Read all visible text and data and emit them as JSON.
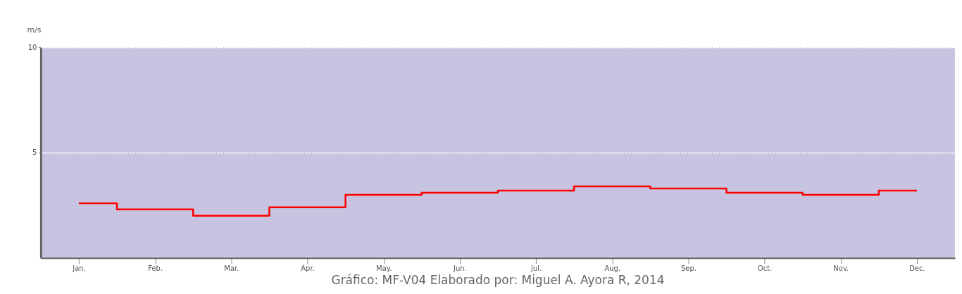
{
  "chart_data": {
    "type": "step",
    "ylabel": "m/s",
    "categories": [
      "Jan.",
      "Feb.",
      "Mar.",
      "Apr.",
      "May.",
      "Jun.",
      "Jul.",
      "Aug.",
      "Sep.",
      "Oct.",
      "Nov.",
      "Dec."
    ],
    "series": [
      {
        "color": "#ff0000",
        "values": [
          2.6,
          2.3,
          2.0,
          2.4,
          3.0,
          3.1,
          3.2,
          3.4,
          3.3,
          3.1,
          3.0,
          3.2
        ]
      }
    ],
    "ylim": [
      0,
      10
    ],
    "yticks": [
      5,
      10
    ],
    "grid": "y",
    "legend": false,
    "annotations": [
      "Gráfico: MF-V04  Elaborado por: Miguel A. Ayora R, 2014"
    ]
  }
}
